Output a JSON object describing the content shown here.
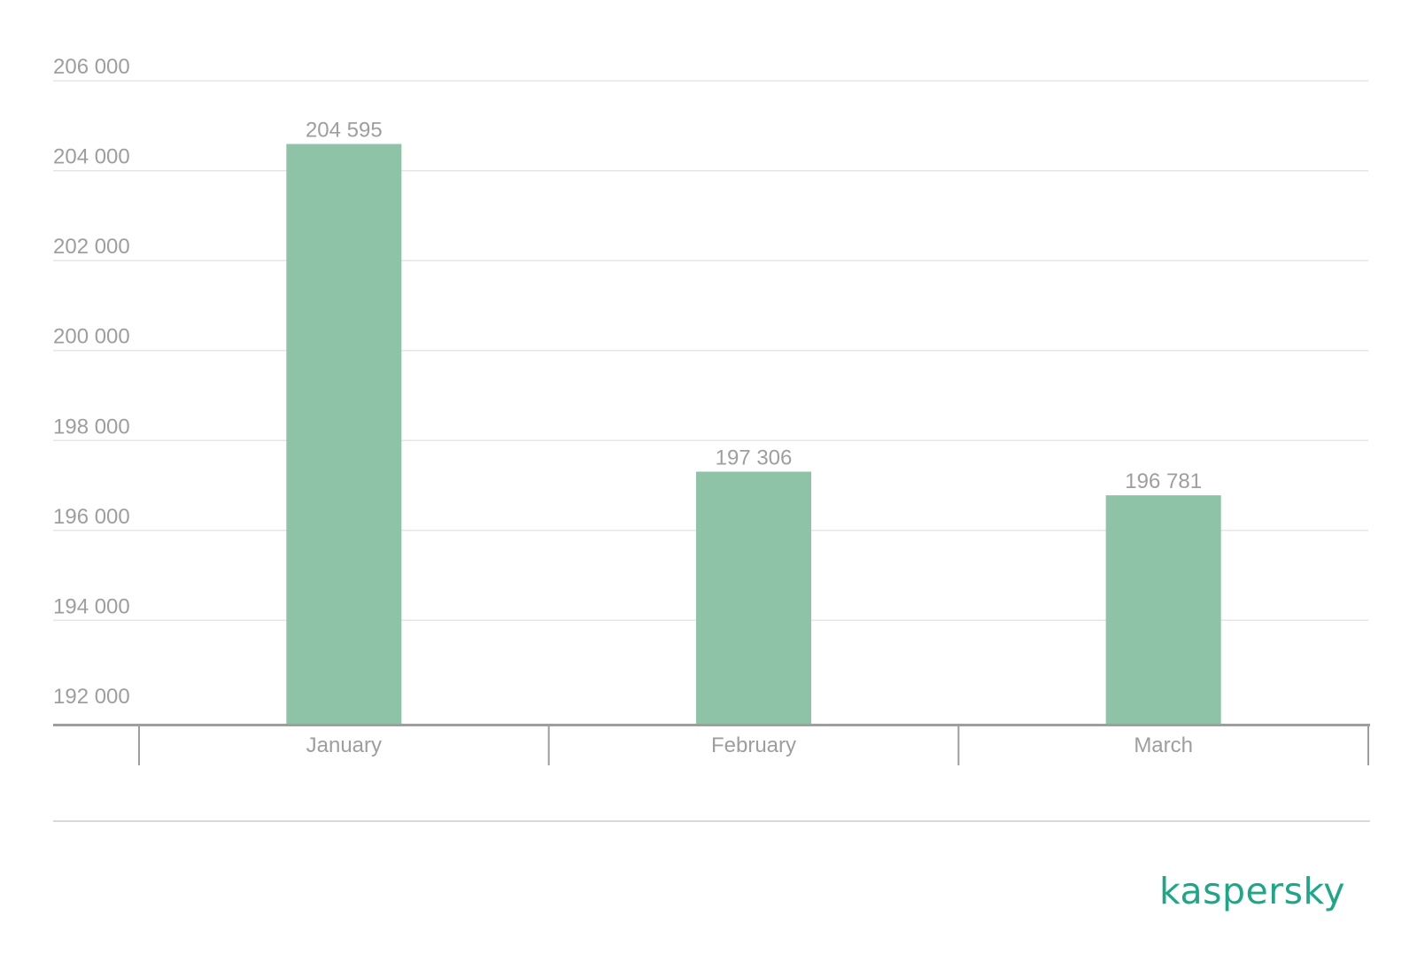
{
  "chart_data": {
    "type": "bar",
    "categories": [
      "January",
      "February",
      "March"
    ],
    "values": [
      204595,
      197306,
      196781
    ],
    "data_labels": [
      "204 595",
      "197 306",
      "196 781"
    ],
    "yticks": [
      192000,
      194000,
      196000,
      198000,
      200000,
      202000,
      204000,
      206000
    ],
    "ytick_labels": [
      "192 000",
      "194 000",
      "196 000",
      "198 000",
      "200 000",
      "202 000",
      "204 000",
      "206 000"
    ],
    "ylim": [
      191700,
      206300
    ],
    "grid": true,
    "title": "",
    "xlabel": "",
    "ylabel": "",
    "colors": {
      "bar": "#8fc3a7",
      "grid": "#e6e6e6",
      "axis": "#9e9e9e",
      "text": "#9e9e9e"
    }
  },
  "brand": {
    "logo_text": "kaspersky",
    "logo_color": "#1fa687"
  }
}
